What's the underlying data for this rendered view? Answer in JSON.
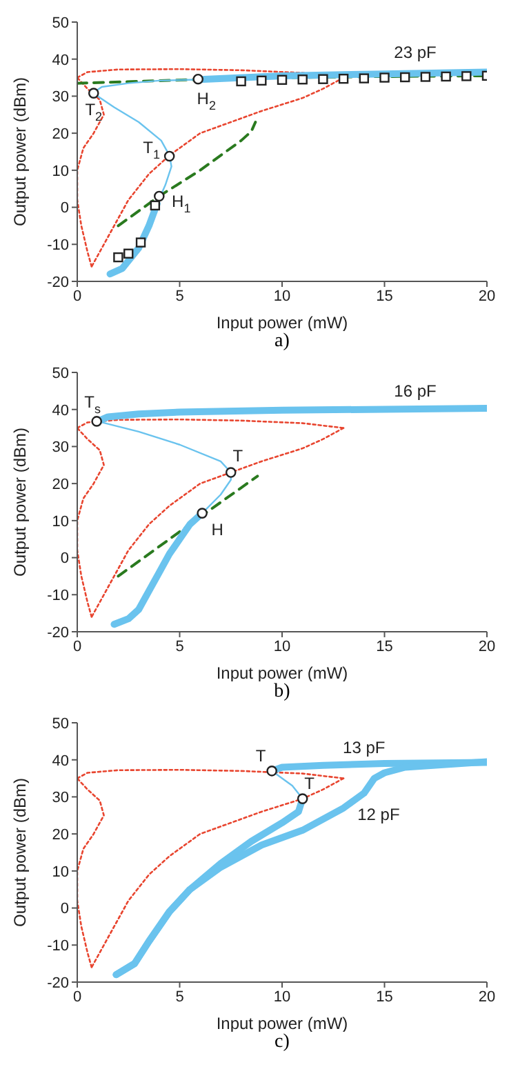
{
  "chart_data": [
    {
      "type": "line",
      "xlabel": "Input power (mW)",
      "ylabel": "Output power (dBm)",
      "xlim": [
        0,
        20
      ],
      "ylim": [
        -20,
        50
      ],
      "xticks": [
        0,
        5,
        10,
        15,
        20
      ],
      "yticks": [
        -20,
        -10,
        0,
        10,
        20,
        30,
        40,
        50
      ],
      "annotations": [
        {
          "text": "23 pF",
          "x": 16.5,
          "y": 36.2
        },
        {
          "text": "T$_{2}$",
          "x": 0.8,
          "y": 30.8
        },
        {
          "text": "H$_{2}$",
          "x": 5.9,
          "y": 34.6
        },
        {
          "text": "T$_{1}$",
          "x": 4.5,
          "y": 13.8
        },
        {
          "text": "H$_{1}$",
          "x": 4,
          "y": 3
        },
        "a)"
      ],
      "series": [
        {
          "line_style": "dotted",
          "color": "#e8452f",
          "x": [
            0.7,
            0.5,
            0.2,
            0,
            0,
            0.3,
            0.8,
            1.3,
            1.1,
            0.5,
            0
          ],
          "values": [
            -16,
            -12,
            -5,
            2,
            10,
            16,
            20,
            25,
            29,
            32,
            35
          ]
        },
        {
          "line_style": "dotted",
          "color": "#e8452f",
          "x": [
            0,
            0.5,
            2,
            5,
            8,
            11,
            13
          ],
          "values": [
            35,
            36.5,
            37.2,
            37.3,
            37,
            36.3,
            35
          ]
        },
        {
          "line_style": "dotted",
          "color": "#e8452f",
          "x": [
            13,
            12,
            11,
            9,
            7.5,
            6,
            4.5,
            3.5,
            2.5,
            1.8,
            1.2,
            0.7
          ],
          "values": [
            35,
            32,
            29.5,
            26,
            23,
            20,
            14,
            9,
            2,
            -5,
            -11,
            -16
          ]
        },
        {
          "line_style": "dashed",
          "color": "#2a7a1f",
          "x": [
            2,
            4,
            6,
            8,
            8.5,
            8.7
          ],
          "values": [
            -5,
            3,
            10,
            18,
            20.5,
            23
          ]
        },
        {
          "line_style": "dashed",
          "color": "#2a7a1f",
          "x": [
            0,
            3,
            6,
            10,
            15,
            20
          ],
          "values": [
            33.5,
            34,
            34.5,
            35,
            35.3,
            35.5
          ]
        },
        {
          "line_style": "solid",
          "color": "#6ac3ee",
          "x": [
            1.6,
            2.2,
            3,
            3.5,
            3.9
          ],
          "values": [
            -18,
            -16.5,
            -11,
            -5,
            1
          ]
        },
        {
          "line_style": "solid",
          "color": "#6ac3ee",
          "x": [
            3.9,
            4.3,
            4.6,
            4.5,
            4.1,
            3,
            1.8,
            1,
            0.8,
            1.2,
            2.5,
            4,
            6
          ],
          "values": [
            1,
            6,
            11,
            14,
            18,
            23,
            27,
            30,
            31,
            32.5,
            33.5,
            34.2,
            34.5
          ]
        },
        {
          "line_style": "solid",
          "color": "#6ac3ee",
          "x": [
            6,
            10,
            15,
            20
          ],
          "values": [
            34.5,
            35.5,
            36,
            36.5
          ]
        },
        {
          "type": "scatter",
          "marker": "square",
          "color": "#222222",
          "x": [
            2,
            2.5,
            3.1,
            3.8,
            8,
            9,
            10,
            11,
            12,
            13,
            14,
            15,
            16,
            17,
            18,
            19,
            20
          ],
          "values": [
            -13.5,
            -12.5,
            -9.5,
            0.5,
            34,
            34.2,
            34.4,
            34.5,
            34.6,
            34.7,
            34.8,
            35,
            35.1,
            35.2,
            35.3,
            35.4,
            35.5
          ]
        },
        {
          "type": "scatter",
          "marker": "circle",
          "color": "#222222",
          "x": [
            0.8,
            5.9,
            4.5,
            4
          ],
          "values": [
            30.8,
            34.6,
            13.8,
            3
          ]
        }
      ]
    },
    {
      "type": "line",
      "xlabel": "Input power (mW)",
      "ylabel": "Output power (dBm)",
      "xlim": [
        0,
        20
      ],
      "ylim": [
        -20,
        50
      ],
      "xticks": [
        0,
        5,
        10,
        15,
        20
      ],
      "yticks": [
        -20,
        -10,
        0,
        10,
        20,
        30,
        40,
        50
      ],
      "annotations": [
        {
          "text": "16 pF",
          "x": 16.5,
          "y": 40.2
        },
        {
          "text": "T$_{s}$",
          "x": 0.95,
          "y": 36.8
        },
        {
          "text": "T",
          "x": 7.5,
          "y": 23
        },
        {
          "text": "H",
          "x": 6.1,
          "y": 12
        },
        "b)"
      ],
      "series": [
        {
          "line_style": "dotted",
          "color": "#e8452f",
          "x": [
            0.7,
            0.5,
            0.2,
            0,
            0,
            0.3,
            0.8,
            1.3,
            1.1,
            0.5,
            0
          ],
          "values": [
            -16,
            -12,
            -5,
            2,
            10,
            16,
            20,
            25,
            29,
            32,
            35
          ]
        },
        {
          "line_style": "dotted",
          "color": "#e8452f",
          "x": [
            0,
            0.5,
            2,
            5,
            8,
            11,
            13
          ],
          "values": [
            35,
            36.5,
            37.2,
            37.3,
            37,
            36.3,
            35
          ]
        },
        {
          "line_style": "dotted",
          "color": "#e8452f",
          "x": [
            13,
            12,
            11,
            9,
            7.5,
            6,
            4.5,
            3.5,
            2.5,
            1.8,
            1.2,
            0.7
          ],
          "values": [
            35,
            32,
            29.5,
            26,
            23,
            20,
            14,
            9,
            2,
            -5,
            -11,
            -16
          ]
        },
        {
          "line_style": "dashed",
          "color": "#2a7a1f",
          "x": [
            2,
            4,
            6,
            8.8
          ],
          "values": [
            -5,
            3,
            11,
            22
          ]
        },
        {
          "line_style": "solid",
          "color": "#6ac3ee",
          "x": [
            1.8,
            2.5,
            3,
            3.5,
            4,
            4.5,
            5,
            5.5,
            6.1
          ],
          "values": [
            -18,
            -16.5,
            -14,
            -9,
            -4,
            1,
            5,
            9,
            12
          ]
        },
        {
          "line_style": "solid",
          "color": "#6ac3ee",
          "x": [
            6.1,
            7,
            7.5,
            7.5,
            7,
            5,
            3,
            1
          ],
          "values": [
            12,
            17,
            21,
            23,
            26,
            30.5,
            34,
            36.8
          ]
        },
        {
          "line_style": "solid",
          "color": "#6ac3ee",
          "x": [
            1,
            1.5,
            3,
            5,
            10,
            20
          ],
          "values": [
            36.8,
            38,
            38.8,
            39.3,
            39.8,
            40.3
          ]
        },
        {
          "type": "scatter",
          "marker": "circle",
          "color": "#222222",
          "x": [
            0.95,
            7.5,
            6.1
          ],
          "values": [
            36.8,
            23,
            12
          ]
        }
      ]
    },
    {
      "type": "line",
      "xlabel": "Input power (mW)",
      "ylabel": "Output power (dBm)",
      "xlim": [
        0,
        20
      ],
      "ylim": [
        -20,
        50
      ],
      "xticks": [
        0,
        5,
        10,
        15,
        20
      ],
      "yticks": [
        -20,
        -10,
        0,
        10,
        20,
        30,
        40,
        50
      ],
      "annotations": [
        {
          "text": "13 pF",
          "x": 14,
          "y": 38.8
        },
        {
          "text": "12 pF",
          "x": 13.5,
          "y": 29
        },
        {
          "text": "T",
          "x": 9.5,
          "y": 37
        },
        {
          "text": "T",
          "x": 11,
          "y": 29.5
        },
        "c)"
      ],
      "series": [
        {
          "line_style": "dotted",
          "color": "#e8452f",
          "x": [
            0.7,
            0.5,
            0.2,
            0,
            0,
            0.3,
            0.8,
            1.3,
            1.1,
            0.5,
            0
          ],
          "values": [
            -16,
            -12,
            -5,
            2,
            10,
            16,
            20,
            25,
            29,
            32,
            35
          ]
        },
        {
          "line_style": "dotted",
          "color": "#e8452f",
          "x": [
            0,
            0.5,
            2,
            5,
            8,
            11,
            13
          ],
          "values": [
            35,
            36.5,
            37.2,
            37.3,
            37,
            36.3,
            35
          ]
        },
        {
          "line_style": "dotted",
          "color": "#e8452f",
          "x": [
            13,
            12,
            11,
            9,
            7.5,
            6,
            4.5,
            3.5,
            2.5,
            1.8,
            1.2,
            0.7
          ],
          "values": [
            35,
            32,
            29.5,
            26,
            23,
            20,
            14,
            9,
            2,
            -5,
            -11,
            -16
          ]
        },
        {
          "line_style": "solid",
          "color": "#6ac3ee",
          "x": [
            1.9,
            2.8,
            3.5,
            4.5,
            5.5,
            7,
            8.5,
            10,
            10.8,
            11
          ],
          "values": [
            -18,
            -15,
            -9,
            -1,
            5,
            12,
            18,
            23,
            26,
            29.5
          ]
        },
        {
          "line_style": "solid",
          "color": "#6ac3ee",
          "x": [
            11,
            10.5,
            9.5
          ],
          "values": [
            29.5,
            33,
            37
          ]
        },
        {
          "line_style": "solid",
          "color": "#6ac3ee",
          "x": [
            9.5,
            10,
            12,
            15,
            20
          ],
          "values": [
            37,
            38,
            38.5,
            39,
            39.3
          ]
        },
        {
          "line_style": "solid",
          "color": "#6ac3ee",
          "x": [
            1.9,
            2.8,
            3.5,
            4.5,
            5.5,
            7,
            9,
            11,
            13,
            14,
            14.5,
            15,
            16,
            20
          ],
          "values": [
            -18,
            -15,
            -9,
            -1,
            5,
            11,
            17,
            21,
            27,
            31,
            35,
            36.5,
            38,
            39.5
          ]
        },
        {
          "type": "scatter",
          "marker": "circle",
          "color": "#222222",
          "x": [
            9.5,
            11
          ],
          "values": [
            37,
            29.5
          ]
        }
      ]
    }
  ]
}
